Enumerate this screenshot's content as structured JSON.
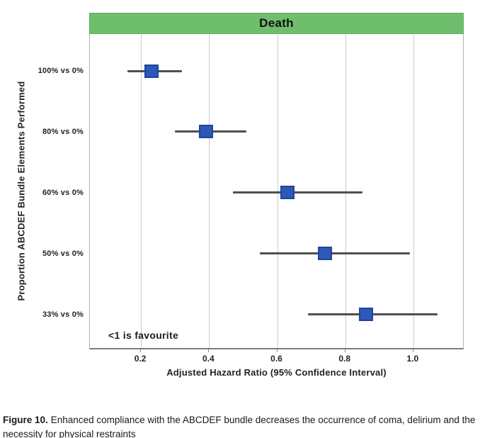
{
  "figure": {
    "panel_title": "Death",
    "annotation": "<1 is favourite",
    "xlabel": "Adjusted Hazard Ratio (95% Confidence Interval)",
    "ylabel": "Proportion ABCDEF Bundle Elements Performed"
  },
  "caption": {
    "label": "Figure 10.",
    "text": "Enhanced compliance with the ABCDEF bundle decreases the occurrence of coma, delirium and the necessity for physical restraints"
  },
  "chart_data": {
    "type": "scatter",
    "subtype": "forest-plot",
    "title": "Death",
    "xlabel": "Adjusted Hazard Ratio (95% Confidence Interval)",
    "ylabel": "Proportion ABCDEF Bundle Elements Performed",
    "categories": [
      "100% vs 0%",
      "80% vs 0%",
      "60% vs 0%",
      "50% vs 0%",
      "33% vs 0%"
    ],
    "series": [
      {
        "name": "Adjusted Hazard Ratio (95% CI)",
        "points": [
          {
            "category": "100% vs 0%",
            "hr": 0.23,
            "ci_low": 0.16,
            "ci_high": 0.32
          },
          {
            "category": "80% vs 0%",
            "hr": 0.39,
            "ci_low": 0.3,
            "ci_high": 0.51
          },
          {
            "category": "60% vs 0%",
            "hr": 0.63,
            "ci_low": 0.47,
            "ci_high": 0.85
          },
          {
            "category": "50% vs 0%",
            "hr": 0.74,
            "ci_low": 0.55,
            "ci_high": 0.99
          },
          {
            "category": "33% vs 0%",
            "hr": 0.86,
            "ci_low": 0.69,
            "ci_high": 1.07
          }
        ]
      }
    ],
    "xlim": [
      0.05,
      1.15
    ],
    "xticks": [
      0.2,
      0.4,
      0.6,
      0.8,
      1.0
    ],
    "xtick_labels": [
      "0.2",
      "0.4",
      "0.6",
      "0.8",
      "1.0"
    ],
    "grid": "vertical",
    "legend": "none",
    "annotation": "<1 is favourite"
  },
  "colors": {
    "header_green": "#6fbe6d",
    "header_border": "#5fae5f",
    "marker_blue": "#2d57b8",
    "marker_border": "#1f4697",
    "ci_line": "#4f4f4f",
    "gridline": "#cccccc",
    "plot_border": "#b3b3b3",
    "axis_line": "#7d7d7d",
    "text": "#1c1c1c"
  }
}
